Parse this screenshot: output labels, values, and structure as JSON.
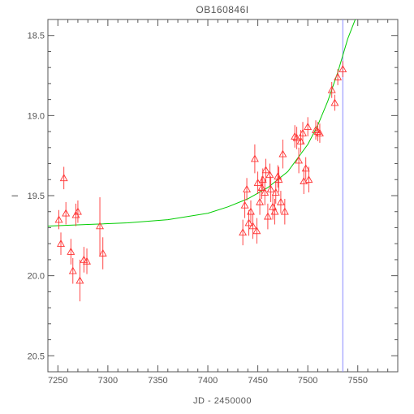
{
  "chart_data": {
    "type": "scatter",
    "title": "OB160846I",
    "xlabel": "JD - 2450000",
    "ylabel": "I",
    "xlim": [
      7240,
      7590
    ],
    "ylim": [
      20.6,
      18.4
    ],
    "y_inverted": true,
    "grid": false,
    "x_ticks": [
      7250,
      7300,
      7350,
      7400,
      7450,
      7500,
      7550
    ],
    "y_ticks": [
      18.5,
      19.0,
      19.5,
      20.0,
      20.5
    ],
    "x_tick_labels": [
      "7250",
      "7300",
      "7350",
      "7400",
      "7450",
      "7500",
      "7550"
    ],
    "y_tick_labels": [
      "18.5",
      "19.0",
      "19.5",
      "20.0",
      "20.5"
    ],
    "colors": {
      "points": "#ff3333",
      "fit": "#00cc00",
      "reference_line": "#8888ff",
      "frame": "#555555"
    },
    "reference_line_x": 7535,
    "fit_curve": {
      "x": [
        7240,
        7280,
        7320,
        7360,
        7400,
        7420,
        7440,
        7460,
        7480,
        7500,
        7510,
        7520,
        7530,
        7540,
        7550,
        7553
      ],
      "y": [
        19.69,
        19.68,
        19.67,
        19.65,
        19.61,
        19.57,
        19.52,
        19.45,
        19.35,
        19.18,
        19.06,
        18.91,
        18.73,
        18.52,
        18.36,
        18.4
      ]
    },
    "series": [
      {
        "x": [
          7251,
          7253,
          7256,
          7258,
          7263,
          7265,
          7268,
          7270,
          7272,
          7276,
          7279,
          7292,
          7295,
          7435,
          7437,
          7439,
          7441,
          7443,
          7445,
          7447,
          7449,
          7450,
          7452,
          7454,
          7455,
          7457,
          7458,
          7460,
          7462,
          7463,
          7465,
          7467,
          7468,
          7470,
          7471,
          7473,
          7475,
          7477,
          7487,
          7489,
          7491,
          7493,
          7495,
          7496,
          7498,
          7500,
          7501,
          7508,
          7510,
          7512,
          7524,
          7527,
          7530,
          7535
        ],
        "y": [
          19.65,
          19.8,
          19.39,
          19.61,
          19.85,
          19.97,
          19.62,
          19.6,
          20.03,
          19.9,
          19.91,
          19.69,
          19.86,
          19.73,
          19.56,
          19.46,
          19.67,
          19.6,
          19.69,
          19.27,
          19.72,
          19.42,
          19.54,
          19.45,
          19.4,
          19.48,
          19.34,
          19.63,
          19.37,
          19.46,
          19.57,
          19.6,
          19.48,
          19.38,
          19.4,
          19.54,
          19.24,
          19.6,
          19.13,
          19.14,
          19.28,
          19.16,
          19.11,
          19.41,
          19.33,
          19.07,
          19.4,
          19.09,
          19.1,
          19.11,
          18.84,
          18.92,
          18.76,
          18.71
        ],
        "err": [
          0.06,
          0.07,
          0.07,
          0.07,
          0.08,
          0.08,
          0.07,
          0.07,
          0.13,
          0.08,
          0.08,
          0.18,
          0.1,
          0.08,
          0.08,
          0.07,
          0.08,
          0.07,
          0.08,
          0.09,
          0.08,
          0.07,
          0.08,
          0.07,
          0.07,
          0.08,
          0.07,
          0.08,
          0.07,
          0.08,
          0.08,
          0.08,
          0.07,
          0.07,
          0.08,
          0.07,
          0.09,
          0.08,
          0.07,
          0.07,
          0.08,
          0.07,
          0.07,
          0.08,
          0.07,
          0.06,
          0.08,
          0.06,
          0.06,
          0.06,
          0.05,
          0.05,
          0.05,
          0.05
        ]
      }
    ]
  }
}
